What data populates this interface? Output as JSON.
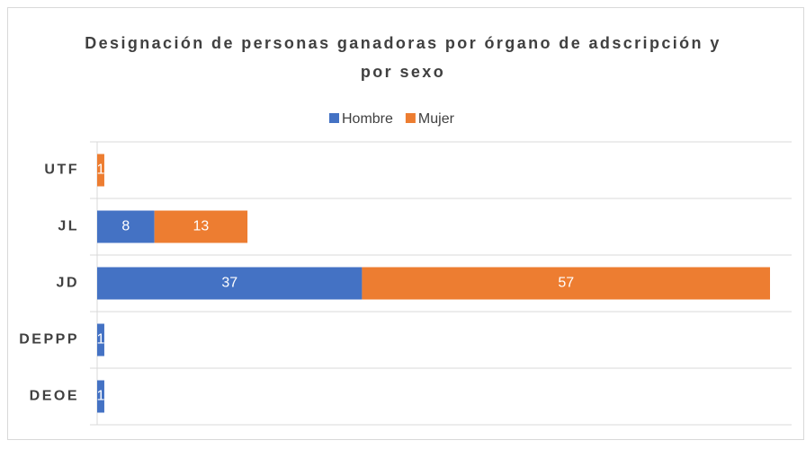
{
  "chart_data": {
    "type": "stacked_bar_horizontal",
    "title": "Designación de personas ganadoras por órgano de adscripción y por sexo",
    "categories": [
      "UTF",
      "JL",
      "JD",
      "DEPPP",
      "DEOE"
    ],
    "series": [
      {
        "name": "Hombre",
        "color": "#4472c4",
        "values": [
          null,
          8,
          37,
          1,
          1
        ]
      },
      {
        "name": "Mujer",
        "color": "#ed7d31",
        "values": [
          1,
          13,
          57,
          null,
          null
        ]
      }
    ],
    "grid": true,
    "legend": "top"
  }
}
